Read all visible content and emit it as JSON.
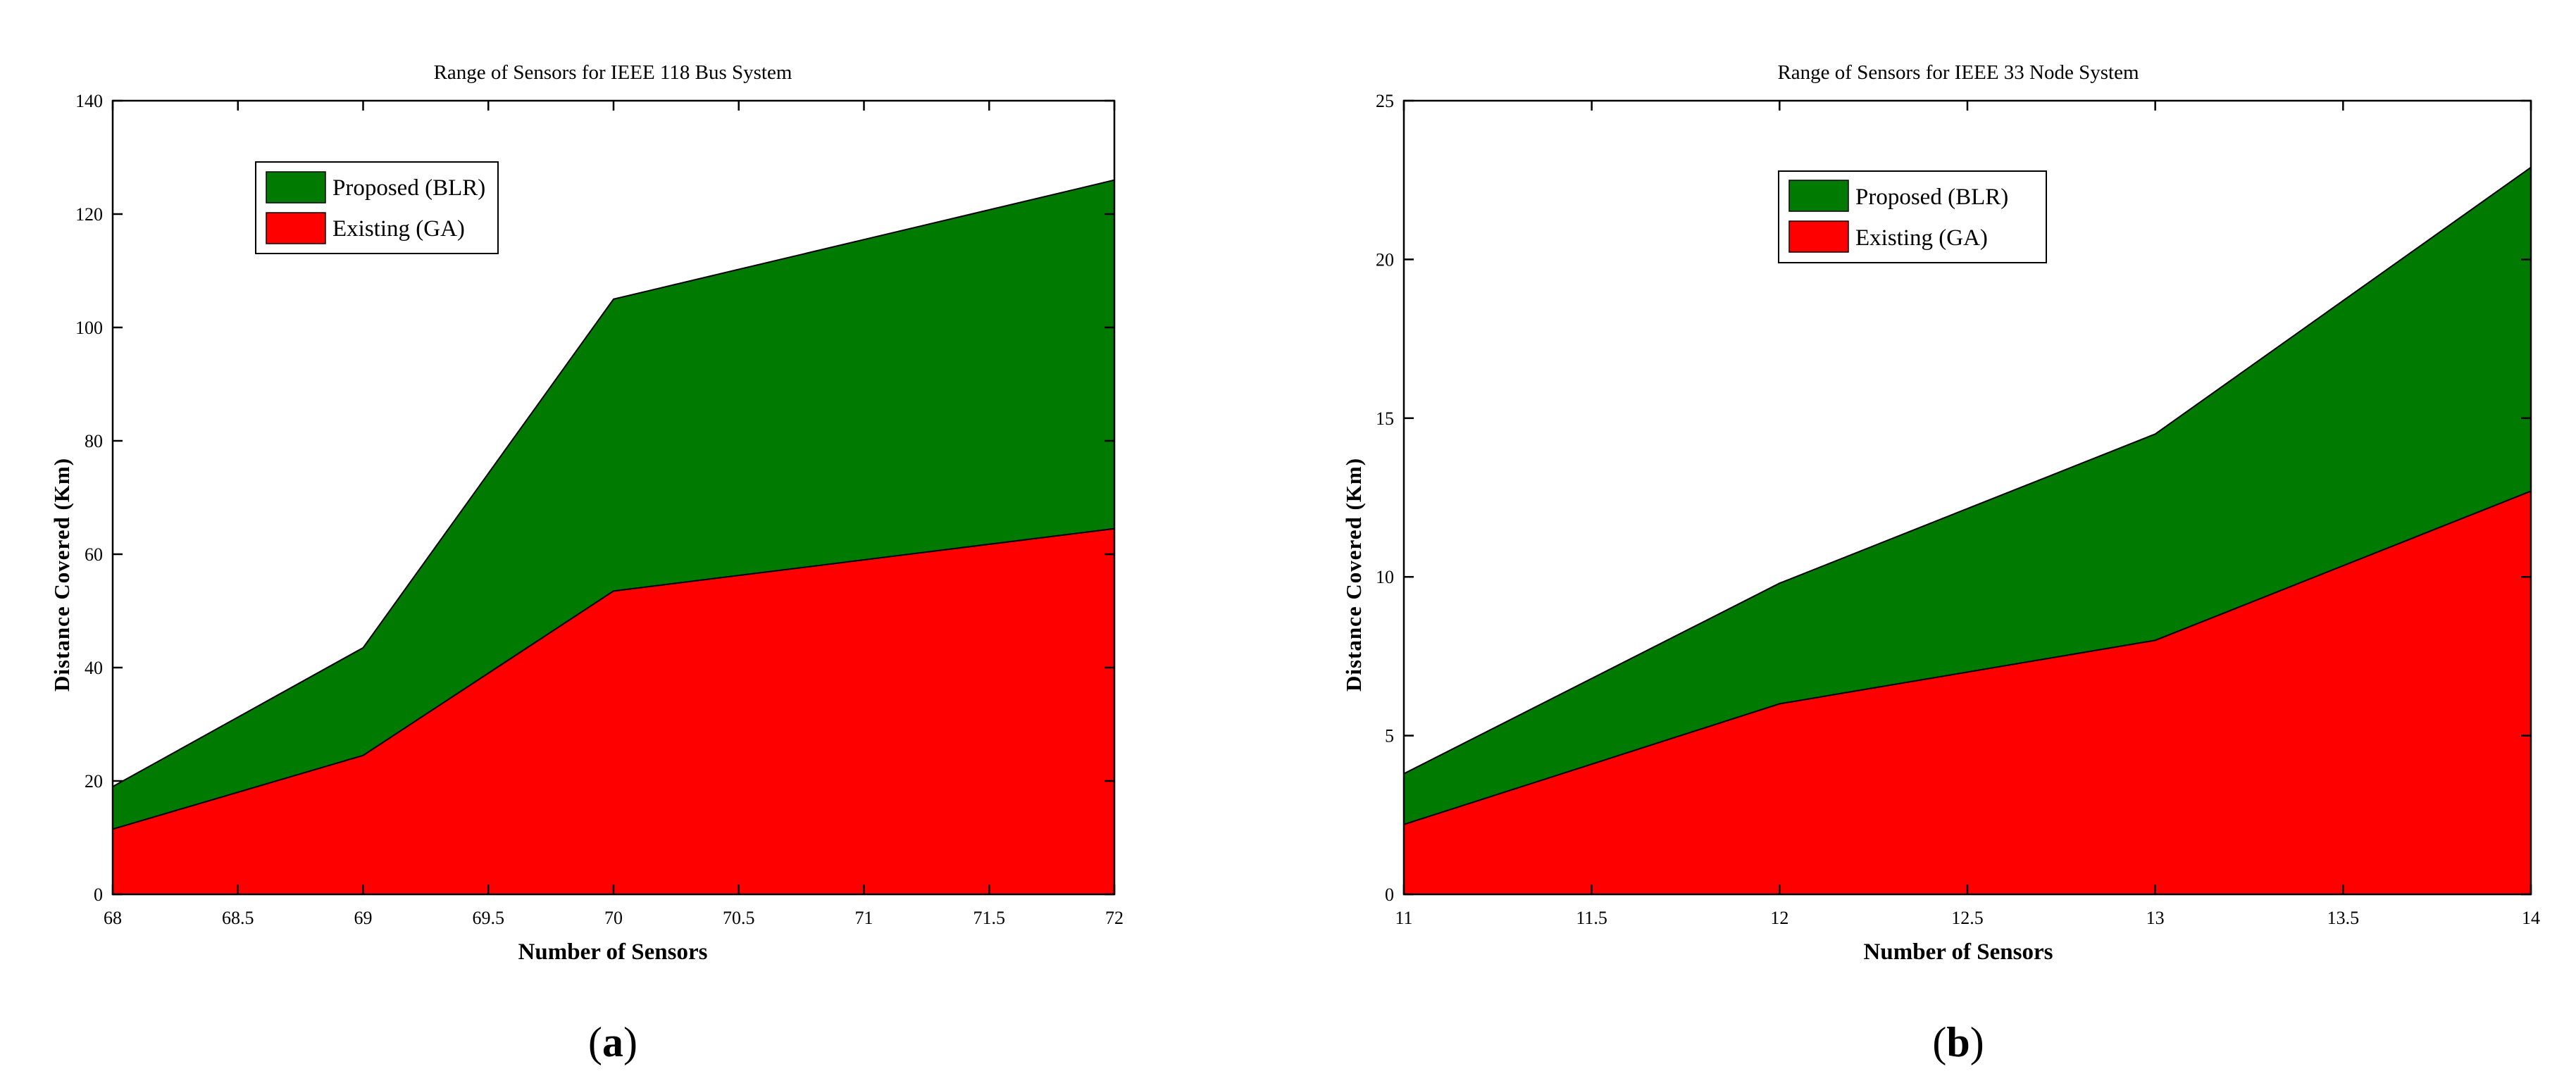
{
  "figure": {
    "panel_labels": [
      {
        "open": "(",
        "letter": "a",
        "close": ")"
      },
      {
        "open": "(",
        "letter": "b",
        "close": ")"
      }
    ]
  },
  "colors": {
    "proposed": "#007a00",
    "existing": "#ff0000"
  },
  "chart_data": [
    {
      "type": "area",
      "stacked": true,
      "title": "Range of Sensors for IEEE 118 Bus System",
      "xlabel": "Number of Sensors",
      "ylabel": "Distance Covered (Km)",
      "x": [
        68,
        69,
        70,
        72
      ],
      "xlim": [
        68,
        72
      ],
      "ylim": [
        0,
        140
      ],
      "xticks": [
        "68",
        "68.5",
        "69",
        "69.5",
        "70",
        "70.5",
        "71",
        "71.5",
        "72"
      ],
      "yticks": [
        "0",
        "20",
        "40",
        "60",
        "80",
        "100",
        "120",
        "140"
      ],
      "grid": false,
      "legend_position": "top-left",
      "series": [
        {
          "name": "Proposed (BLR)",
          "values": [
            7.5,
            19,
            51.5,
            61.5
          ]
        },
        {
          "name": "Existing (GA)",
          "values": [
            11.5,
            24.5,
            53.5,
            64.5
          ]
        }
      ]
    },
    {
      "type": "area",
      "stacked": true,
      "title": "Range of Sensors for IEEE 33 Node System",
      "xlabel": "Number of Sensors",
      "ylabel": "Distance Covered (Km)",
      "x": [
        11,
        12,
        13,
        14
      ],
      "xlim": [
        11,
        14
      ],
      "ylim": [
        0,
        25
      ],
      "xticks": [
        "11",
        "11.5",
        "12",
        "12.5",
        "13",
        "13.5",
        "14"
      ],
      "yticks": [
        "0",
        "5",
        "10",
        "15",
        "20",
        "25"
      ],
      "grid": false,
      "legend_position": "top-center",
      "series": [
        {
          "name": "Proposed (BLR)",
          "values": [
            1.6,
            3.8,
            6.5,
            10.2
          ]
        },
        {
          "name": "Existing (GA)",
          "values": [
            2.2,
            6.0,
            8.0,
            12.7
          ]
        }
      ]
    }
  ]
}
